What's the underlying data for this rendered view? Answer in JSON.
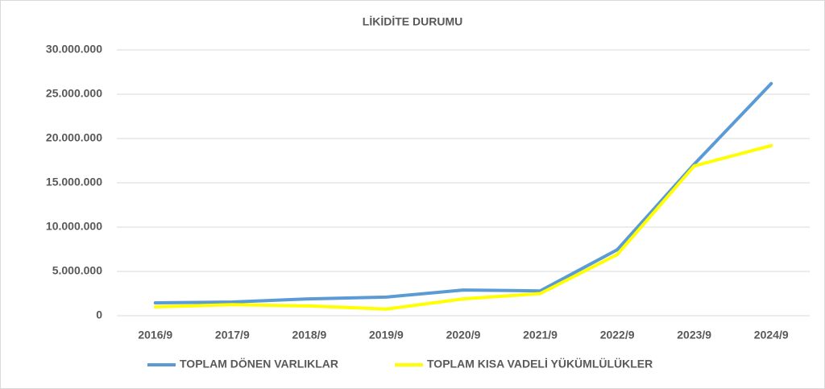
{
  "chart_data": {
    "type": "line",
    "title": "LİKİDİTE DURUMU",
    "categories": [
      "2016/9",
      "2017/9",
      "2018/9",
      "2019/9",
      "2020/9",
      "2021/9",
      "2022/9",
      "2023/9",
      "2024/9"
    ],
    "series": [
      {
        "name": "TOPLAM DÖNEN VARLIKLAR",
        "color": "#5b9bd5",
        "values": [
          1450000,
          1550000,
          1900000,
          2100000,
          2900000,
          2800000,
          7450000,
          17100000,
          26200000
        ]
      },
      {
        "name": "TOPLAM KISA VADELİ YÜKÜMLÜLÜKLER",
        "color": "#ffff00",
        "values": [
          1000000,
          1250000,
          1100000,
          750000,
          1900000,
          2500000,
          6900000,
          16900000,
          19200000
        ]
      }
    ],
    "ylim": [
      0,
      30000000
    ],
    "yticks": [
      0,
      {
        "value": 5000000,
        "label": "5.000.000"
      },
      {
        "value": 10000000,
        "label": "10.000.000"
      },
      {
        "value": 15000000,
        "label": "15.000.000"
      },
      {
        "value": 20000000,
        "label": "20.000.000"
      },
      {
        "value": 25000000,
        "label": "25.000.000"
      },
      {
        "value": 30000000,
        "label": "30.000.000"
      }
    ],
    "grid": true,
    "legend": "bottom"
  }
}
